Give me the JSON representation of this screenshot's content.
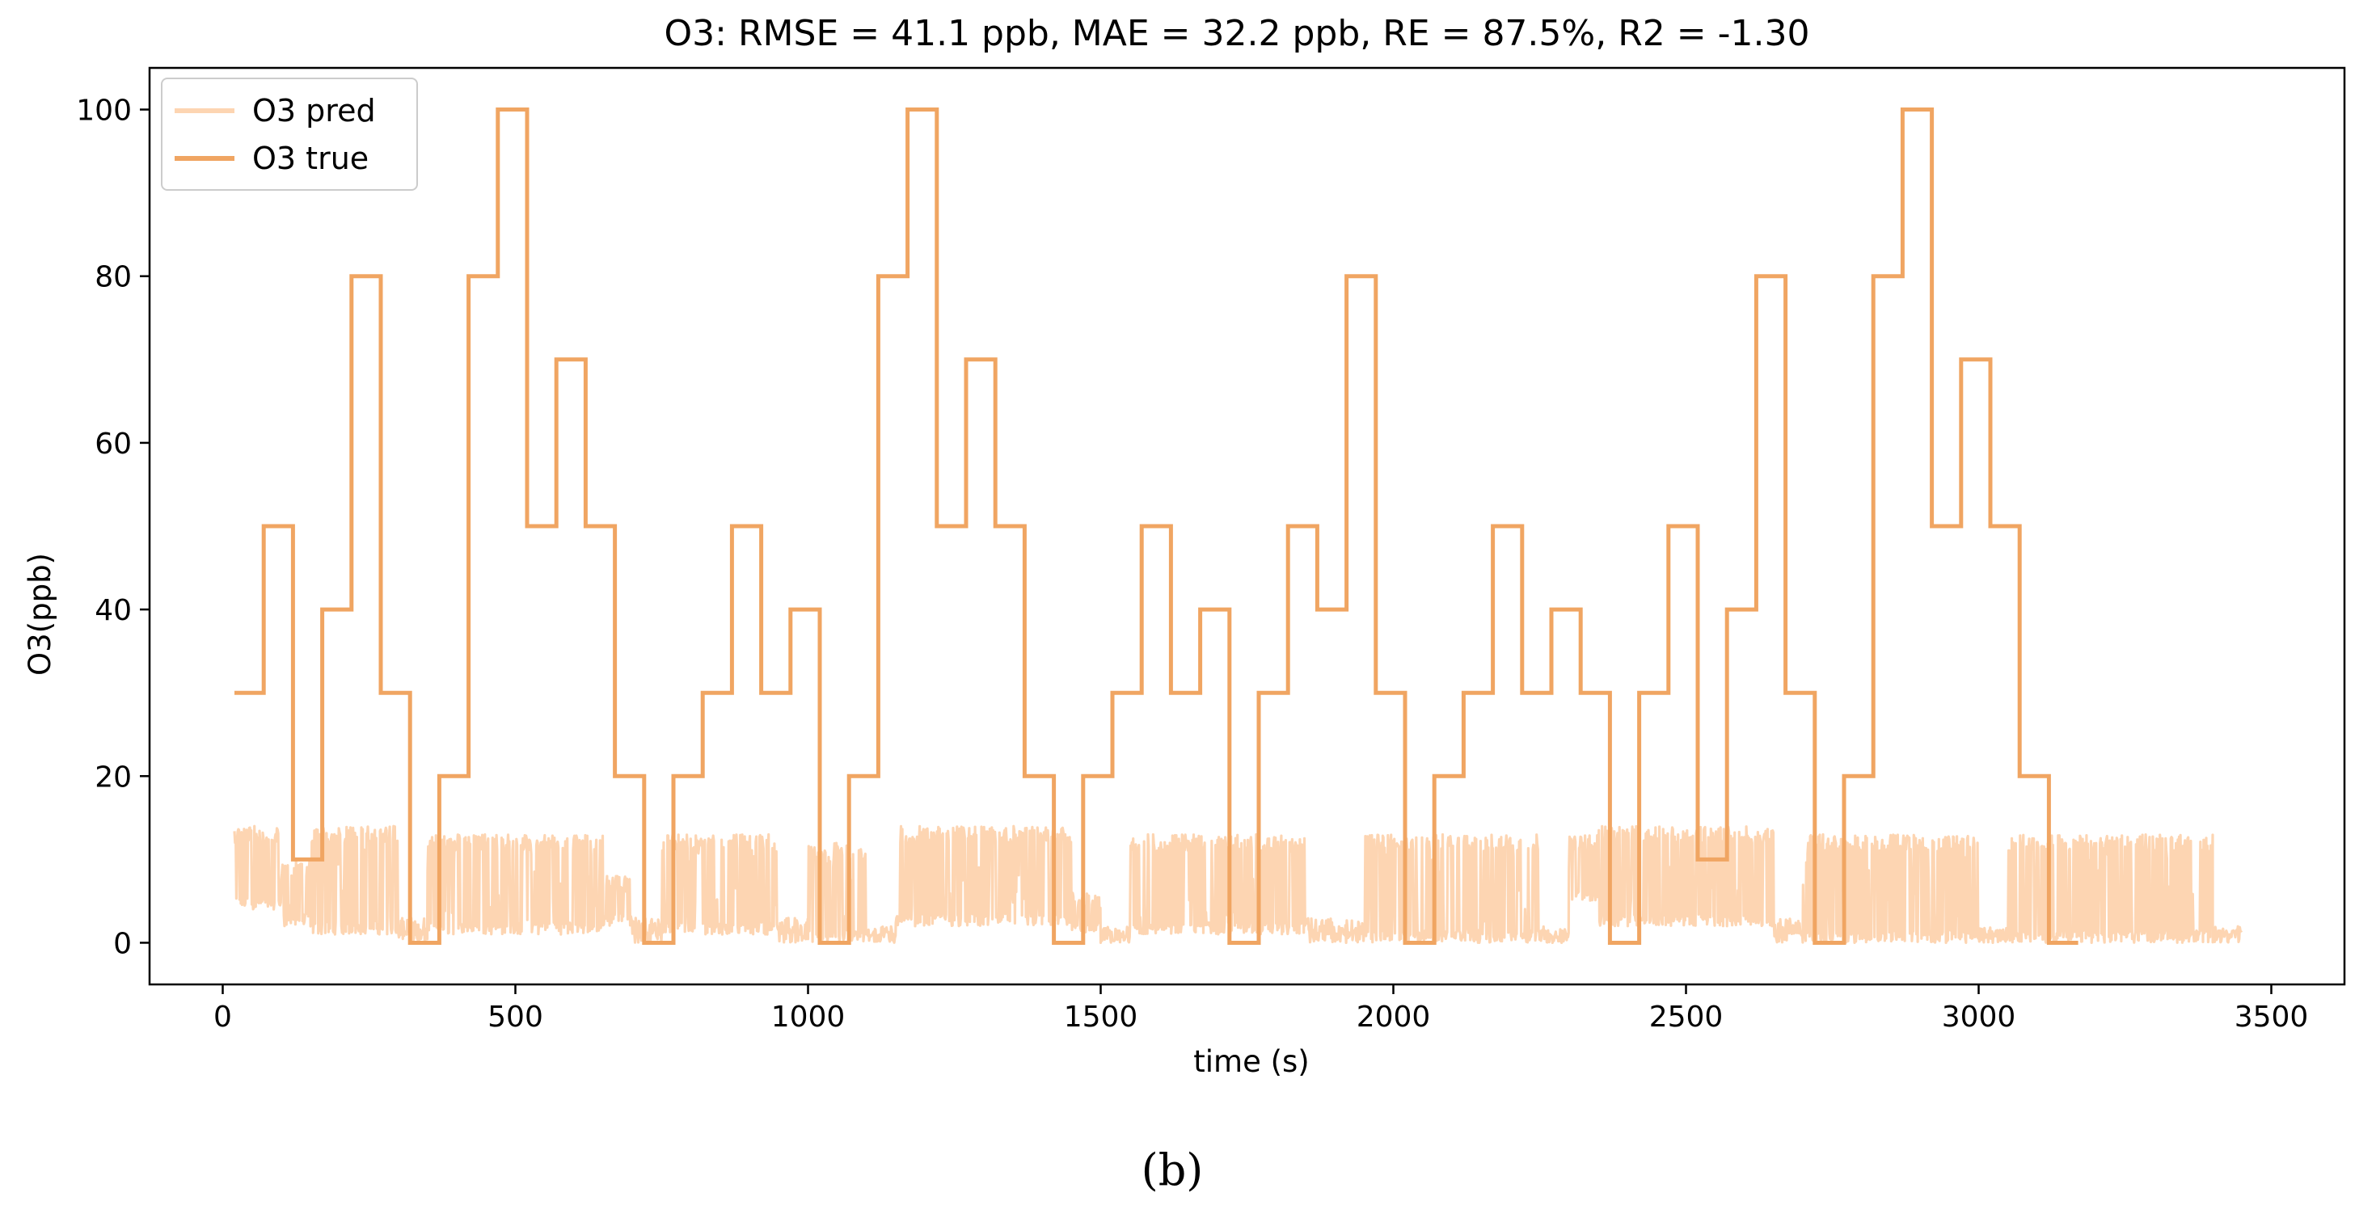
{
  "chart_data": {
    "type": "line",
    "title": "O3: RMSE = 41.1 ppb, MAE = 32.2 ppb, RE = 87.5%, R2 = -1.30",
    "xlabel": "time (s)",
    "ylabel": "O3(ppb)",
    "xlim": [
      -125,
      3625
    ],
    "ylim": [
      -5,
      105
    ],
    "xticks": [
      0,
      500,
      1000,
      1500,
      2000,
      2500,
      3000,
      3500
    ],
    "yticks": [
      0,
      20,
      40,
      60,
      80,
      100
    ],
    "grid": false,
    "legend_location": "upper-left",
    "caption": "(b)",
    "series": [
      {
        "name": "O3 pred",
        "color": "#fdd5b2",
        "style": "noisy",
        "segments": [
          {
            "x": [
              20,
              100
            ],
            "low": 4,
            "high": 14
          },
          {
            "x": [
              100,
              150
            ],
            "low": 2,
            "high": 10
          },
          {
            "x": [
              150,
              300
            ],
            "low": 1,
            "high": 14
          },
          {
            "x": [
              300,
              350
            ],
            "low": 0,
            "high": 3
          },
          {
            "x": [
              350,
              650
            ],
            "low": 1,
            "high": 13
          },
          {
            "x": [
              650,
              700
            ],
            "low": 2,
            "high": 8
          },
          {
            "x": [
              700,
              750
            ],
            "low": 0,
            "high": 3
          },
          {
            "x": [
              750,
              950
            ],
            "low": 1,
            "high": 13
          },
          {
            "x": [
              950,
              1000
            ],
            "low": 0,
            "high": 3
          },
          {
            "x": [
              1000,
              1100
            ],
            "low": 0,
            "high": 12
          },
          {
            "x": [
              1100,
              1150
            ],
            "low": 0,
            "high": 2
          },
          {
            "x": [
              1150,
              1450
            ],
            "low": 2,
            "high": 14
          },
          {
            "x": [
              1450,
              1500
            ],
            "low": 1,
            "high": 6
          },
          {
            "x": [
              1500,
              1550
            ],
            "low": 0,
            "high": 2
          },
          {
            "x": [
              1550,
              1850
            ],
            "low": 1,
            "high": 13
          },
          {
            "x": [
              1850,
              1950
            ],
            "low": 0,
            "high": 3
          },
          {
            "x": [
              1950,
              2250
            ],
            "low": 0,
            "high": 13
          },
          {
            "x": [
              2250,
              2300
            ],
            "low": 0,
            "high": 2
          },
          {
            "x": [
              2300,
              2350
            ],
            "low": 5,
            "high": 13
          },
          {
            "x": [
              2350,
              2650
            ],
            "low": 2,
            "high": 14
          },
          {
            "x": [
              2650,
              2700
            ],
            "low": 0,
            "high": 3
          },
          {
            "x": [
              2700,
              3000
            ],
            "low": 0,
            "high": 13
          },
          {
            "x": [
              3000,
              3050
            ],
            "low": 0,
            "high": 2
          },
          {
            "x": [
              3050,
              3400
            ],
            "low": 0,
            "high": 13
          },
          {
            "x": [
              3400,
              3450
            ],
            "low": 0,
            "high": 2
          }
        ]
      },
      {
        "name": "O3 true",
        "color": "#f0a562",
        "style": "step",
        "start_x": 20,
        "step_width": 50,
        "values": [
          30,
          50,
          10,
          40,
          80,
          30,
          0,
          20,
          80,
          100,
          50,
          70,
          50,
          20,
          0,
          20,
          30,
          50,
          30,
          40,
          0,
          20,
          80,
          100,
          50,
          70,
          50,
          20,
          0,
          20,
          30,
          50,
          30,
          40,
          0,
          30,
          50,
          40,
          80,
          30,
          0,
          20,
          30,
          50,
          30,
          40,
          30,
          0,
          30,
          50,
          10,
          40,
          80,
          30,
          0,
          20,
          80,
          100,
          50,
          70,
          50,
          20,
          0
        ]
      }
    ]
  }
}
